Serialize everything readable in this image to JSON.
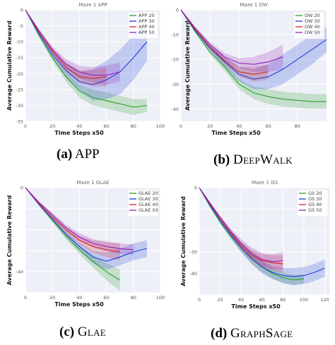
{
  "chart_data": [
    {
      "type": "line",
      "title": "Maze 1 APP",
      "xlabel": "Time Steps x50",
      "ylabel": "Average Cumulative Reward",
      "xlim": [
        0,
        100
      ],
      "ylim": [
        -35,
        0
      ],
      "xticks": [
        0,
        20,
        40,
        60,
        80,
        100
      ],
      "yticks": [
        0,
        -5,
        -10,
        -15,
        -20,
        -25,
        -30,
        -35
      ],
      "ytick_labels": [
        "0",
        "-5",
        "-10",
        "-15",
        "-20",
        "-25",
        "-30",
        "-35"
      ],
      "legend_position": "top-right",
      "grid": true,
      "caption_label": "(a)",
      "caption_name": "APP",
      "series": [
        {
          "name": "APP 20",
          "color": "#2ca02c",
          "x": [
            0,
            10,
            20,
            30,
            40,
            50,
            60,
            70,
            80,
            90
          ],
          "y": [
            0,
            -8,
            -15,
            -21,
            -25.5,
            -27.5,
            -28.5,
            -29.5,
            -30.5,
            -30
          ],
          "band": [
            0,
            0.5,
            1,
            1.5,
            2,
            2.5,
            2.5,
            2.5,
            2.5,
            2
          ]
        },
        {
          "name": "APP 30",
          "color": "#1f3fd9",
          "x": [
            0,
            10,
            20,
            30,
            40,
            50,
            60,
            70,
            80,
            90
          ],
          "y": [
            0,
            -7.5,
            -14,
            -19,
            -22.5,
            -23.5,
            -22,
            -19.5,
            -15,
            -10
          ],
          "band": [
            0,
            0.5,
            1,
            2,
            3,
            5,
            6,
            7,
            7,
            6
          ]
        },
        {
          "name": "APP 40",
          "color": "#d62728",
          "x": [
            0,
            10,
            20,
            30,
            40,
            50,
            60
          ],
          "y": [
            0,
            -7,
            -13,
            -18,
            -21,
            -21.5,
            -21
          ],
          "band": [
            0,
            0.5,
            1,
            1.5,
            2,
            2.5,
            3
          ]
        },
        {
          "name": "APP 50",
          "color": "#9021b8",
          "x": [
            0,
            10,
            20,
            30,
            40,
            50,
            60,
            70
          ],
          "y": [
            0,
            -6.5,
            -12.5,
            -17,
            -19.5,
            -20.5,
            -20.5,
            -19.5
          ],
          "band": [
            0,
            0.5,
            1,
            1.5,
            2,
            2.5,
            3,
            3
          ]
        }
      ]
    },
    {
      "type": "line",
      "title": "Maze 1 DW",
      "xlabel": "Time Steps x50",
      "ylabel": "Average Cumulative Reward",
      "xlim": [
        0,
        100
      ],
      "ylim": [
        -45,
        0
      ],
      "xticks": [
        0,
        20,
        40,
        60,
        80
      ],
      "yticks": [
        0,
        -10,
        -20,
        -30,
        -40
      ],
      "ytick_labels": [
        "0",
        "-10",
        "-20",
        "-30",
        "-40"
      ],
      "legend_position": "top-right",
      "grid": true,
      "caption_label": "(b)",
      "caption_name": "DeepWalk",
      "series": [
        {
          "name": "DW 20",
          "color": "#2ca02c",
          "x": [
            0,
            10,
            20,
            30,
            40,
            50,
            60,
            70,
            80,
            90,
            100
          ],
          "y": [
            0,
            -9,
            -17,
            -23,
            -30,
            -33.5,
            -35,
            -36,
            -36.5,
            -37,
            -37
          ],
          "band": [
            0,
            0.5,
            1,
            1.5,
            2,
            2.5,
            3,
            3,
            3,
            3,
            3
          ]
        },
        {
          "name": "DW 30",
          "color": "#1f3fd9",
          "x": [
            0,
            10,
            20,
            30,
            40,
            50,
            60,
            70,
            80,
            90,
            100
          ],
          "y": [
            0,
            -8.5,
            -15.5,
            -21,
            -26,
            -28,
            -27,
            -24,
            -20,
            -16,
            -12
          ],
          "band": [
            0,
            0.5,
            1,
            2,
            3,
            4,
            5,
            6,
            6,
            6,
            5
          ]
        },
        {
          "name": "DW 40",
          "color": "#d62728",
          "x": [
            0,
            10,
            20,
            30,
            40,
            50,
            60
          ],
          "y": [
            0,
            -8,
            -15,
            -20.5,
            -25,
            -26,
            -25
          ],
          "band": [
            0,
            0.5,
            1,
            1.5,
            2,
            3,
            3
          ]
        },
        {
          "name": "DW 50",
          "color": "#9021b8",
          "x": [
            0,
            10,
            20,
            30,
            40,
            50,
            60,
            70
          ],
          "y": [
            0,
            -7.5,
            -14,
            -19,
            -21.5,
            -22,
            -21,
            -19
          ],
          "band": [
            0,
            0.5,
            1,
            1.5,
            2,
            3,
            4,
            5
          ]
        }
      ]
    },
    {
      "type": "line",
      "title": "Maze 1 GLAE",
      "xlabel": "Time Steps x50",
      "ylabel": "Average Cumulative Reward",
      "xlim": [
        0,
        100
      ],
      "ylim": [
        -50,
        0
      ],
      "xticks": [
        0,
        20,
        40,
        60,
        80,
        100
      ],
      "yticks": [
        0,
        -10,
        -20,
        -30,
        -40,
        -50
      ],
      "ytick_labels": [
        "0",
        "",
        "",
        "",
        "-40",
        ""
      ],
      "legend_position": "top-right",
      "grid": true,
      "caption_label": "(c)",
      "caption_name": "Glae",
      "series": [
        {
          "name": "GLAE 20",
          "color": "#2ca02c",
          "x": [
            0,
            10,
            20,
            30,
            40,
            50,
            60,
            70
          ],
          "y": [
            0,
            -8,
            -15.5,
            -23,
            -29.5,
            -35,
            -40,
            -44
          ],
          "band": [
            0,
            0.5,
            1,
            1.5,
            2,
            3,
            4,
            5
          ]
        },
        {
          "name": "GLAE 30",
          "color": "#1f3fd9",
          "x": [
            0,
            10,
            20,
            30,
            40,
            50,
            60,
            70,
            80,
            90
          ],
          "y": [
            0,
            -8,
            -15,
            -22,
            -28,
            -33,
            -35,
            -33,
            -30.5,
            -29
          ],
          "band": [
            0,
            0.5,
            1,
            1.5,
            2,
            3,
            4,
            4,
            4,
            4
          ]
        },
        {
          "name": "GLAE 40",
          "color": "#d62728",
          "x": [
            0,
            10,
            20,
            30,
            40,
            50,
            60,
            70
          ],
          "y": [
            0,
            -7.5,
            -14,
            -20,
            -25,
            -28,
            -29.5,
            -30.5
          ],
          "band": [
            0,
            0.5,
            1,
            1.5,
            2,
            3,
            3.5,
            4
          ]
        },
        {
          "name": "GLAE 50",
          "color": "#9021b8",
          "x": [
            0,
            10,
            20,
            30,
            40,
            50,
            60,
            70,
            80
          ],
          "y": [
            0,
            -7,
            -13,
            -19,
            -23.5,
            -26.5,
            -28,
            -29,
            -29.5
          ],
          "band": [
            0,
            0.5,
            1,
            1.5,
            2,
            2,
            2.5,
            2.5,
            2.5
          ]
        }
      ]
    },
    {
      "type": "line",
      "title": "Maze 1 GS",
      "xlabel": "Time Steps x50",
      "ylabel": "Average Cumulative Reward",
      "xlim": [
        0,
        125
      ],
      "ylim": [
        -50,
        0
      ],
      "xticks": [
        0,
        20,
        40,
        60,
        80,
        100,
        120
      ],
      "yticks": [
        0,
        -10,
        -20,
        -30,
        -40,
        -50
      ],
      "ytick_labels": [
        "0",
        "",
        "",
        "-30",
        "-40",
        ""
      ],
      "legend_position": "top-right",
      "grid": true,
      "caption_label": "(d)",
      "caption_name": "GraphSage",
      "series": [
        {
          "name": "GS 20",
          "color": "#2ca02c",
          "x": [
            0,
            10,
            20,
            30,
            40,
            50,
            60,
            70,
            80,
            90,
            100
          ],
          "y": [
            0,
            -8.5,
            -16,
            -22.5,
            -28,
            -33,
            -37,
            -40,
            -42,
            -43,
            -42.5
          ],
          "band": [
            0,
            0.5,
            1,
            1.5,
            2,
            2.5,
            2.5,
            2.5,
            2.5,
            2.5,
            2
          ]
        },
        {
          "name": "GS 30",
          "color": "#1f3fd9",
          "x": [
            0,
            10,
            20,
            30,
            40,
            50,
            60,
            70,
            80,
            90,
            100,
            110,
            120
          ],
          "y": [
            0,
            -8,
            -15.5,
            -22,
            -28,
            -33,
            -37,
            -39.5,
            -41,
            -41.5,
            -41,
            -39.5,
            -37.5
          ],
          "band": [
            0,
            0.5,
            1,
            1.5,
            2,
            2.5,
            3,
            3,
            3.5,
            4,
            4,
            4,
            4
          ]
        },
        {
          "name": "GS 40",
          "color": "#d62728",
          "x": [
            0,
            10,
            20,
            30,
            40,
            50,
            60,
            70,
            80
          ],
          "y": [
            0,
            -7.5,
            -14.5,
            -21,
            -27,
            -31.5,
            -34,
            -35,
            -35.5
          ],
          "band": [
            0,
            0.5,
            1,
            1.5,
            2,
            2.5,
            3,
            3.5,
            4
          ]
        },
        {
          "name": "GS 50",
          "color": "#9021b8",
          "x": [
            0,
            10,
            20,
            30,
            40,
            50,
            60,
            70,
            80
          ],
          "y": [
            0,
            -7,
            -14,
            -20.5,
            -26,
            -30.5,
            -33.5,
            -34.5,
            -34
          ],
          "band": [
            0,
            0.5,
            1,
            1.5,
            2,
            2.5,
            3,
            3.5,
            4
          ]
        }
      ]
    }
  ]
}
